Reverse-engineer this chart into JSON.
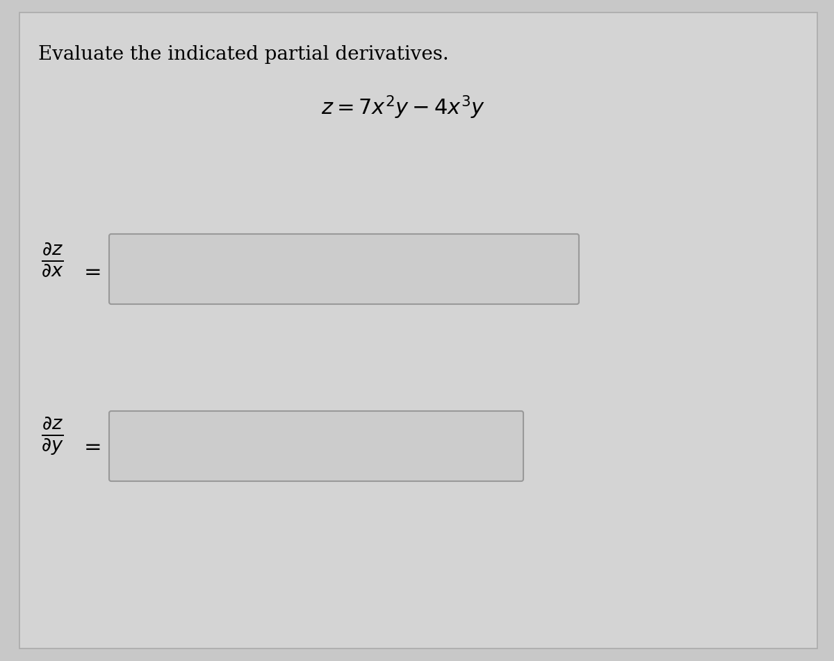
{
  "background_color": "#c8c8c8",
  "panel_color": "#d4d4d4",
  "title_text": "Evaluate the indicated partial derivatives.",
  "formula_text": "$z = 7x^2y - 4x^3y$",
  "title_fontsize": 20,
  "formula_fontsize": 22,
  "deriv_fontsize": 22,
  "border_color": "#888888",
  "box_fill_color": "#cccccc",
  "box_edge_color": "#999999",
  "panel_edge_color": "#aaaaaa"
}
